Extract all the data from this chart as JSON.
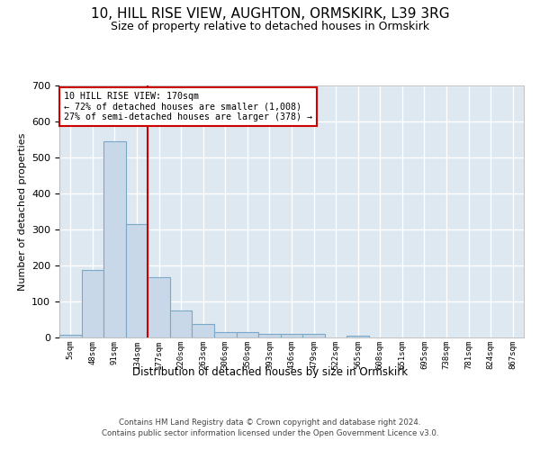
{
  "title": "10, HILL RISE VIEW, AUGHTON, ORMSKIRK, L39 3RG",
  "subtitle": "Size of property relative to detached houses in Ormskirk",
  "xlabel": "Distribution of detached houses by size in Ormskirk",
  "ylabel": "Number of detached properties",
  "footer1": "Contains HM Land Registry data © Crown copyright and database right 2024.",
  "footer2": "Contains public sector information licensed under the Open Government Licence v3.0.",
  "bin_labels": [
    "5sqm",
    "48sqm",
    "91sqm",
    "134sqm",
    "177sqm",
    "220sqm",
    "263sqm",
    "306sqm",
    "350sqm",
    "393sqm",
    "436sqm",
    "479sqm",
    "522sqm",
    "565sqm",
    "608sqm",
    "651sqm",
    "695sqm",
    "738sqm",
    "781sqm",
    "824sqm",
    "867sqm"
  ],
  "bar_heights": [
    8,
    188,
    545,
    315,
    168,
    76,
    38,
    15,
    15,
    10,
    10,
    10,
    0,
    5,
    0,
    0,
    0,
    0,
    0,
    0,
    0
  ],
  "bar_color": "#c8d8e8",
  "bar_edge_color": "#7aa8c8",
  "vline_position": 3.5,
  "vline_color": "#cc0000",
  "annotation_line1": "10 HILL RISE VIEW: 170sqm",
  "annotation_line2": "← 72% of detached houses are smaller (1,008)",
  "annotation_line3": "27% of semi-detached houses are larger (378) →",
  "annotation_box_edgecolor": "#cc0000",
  "ylim": [
    0,
    700
  ],
  "yticks": [
    0,
    100,
    200,
    300,
    400,
    500,
    600,
    700
  ],
  "background_color": "#dde8f0",
  "plot_background": "#ffffff",
  "grid_color": "#ffffff",
  "title_fontsize": 11,
  "subtitle_fontsize": 9
}
